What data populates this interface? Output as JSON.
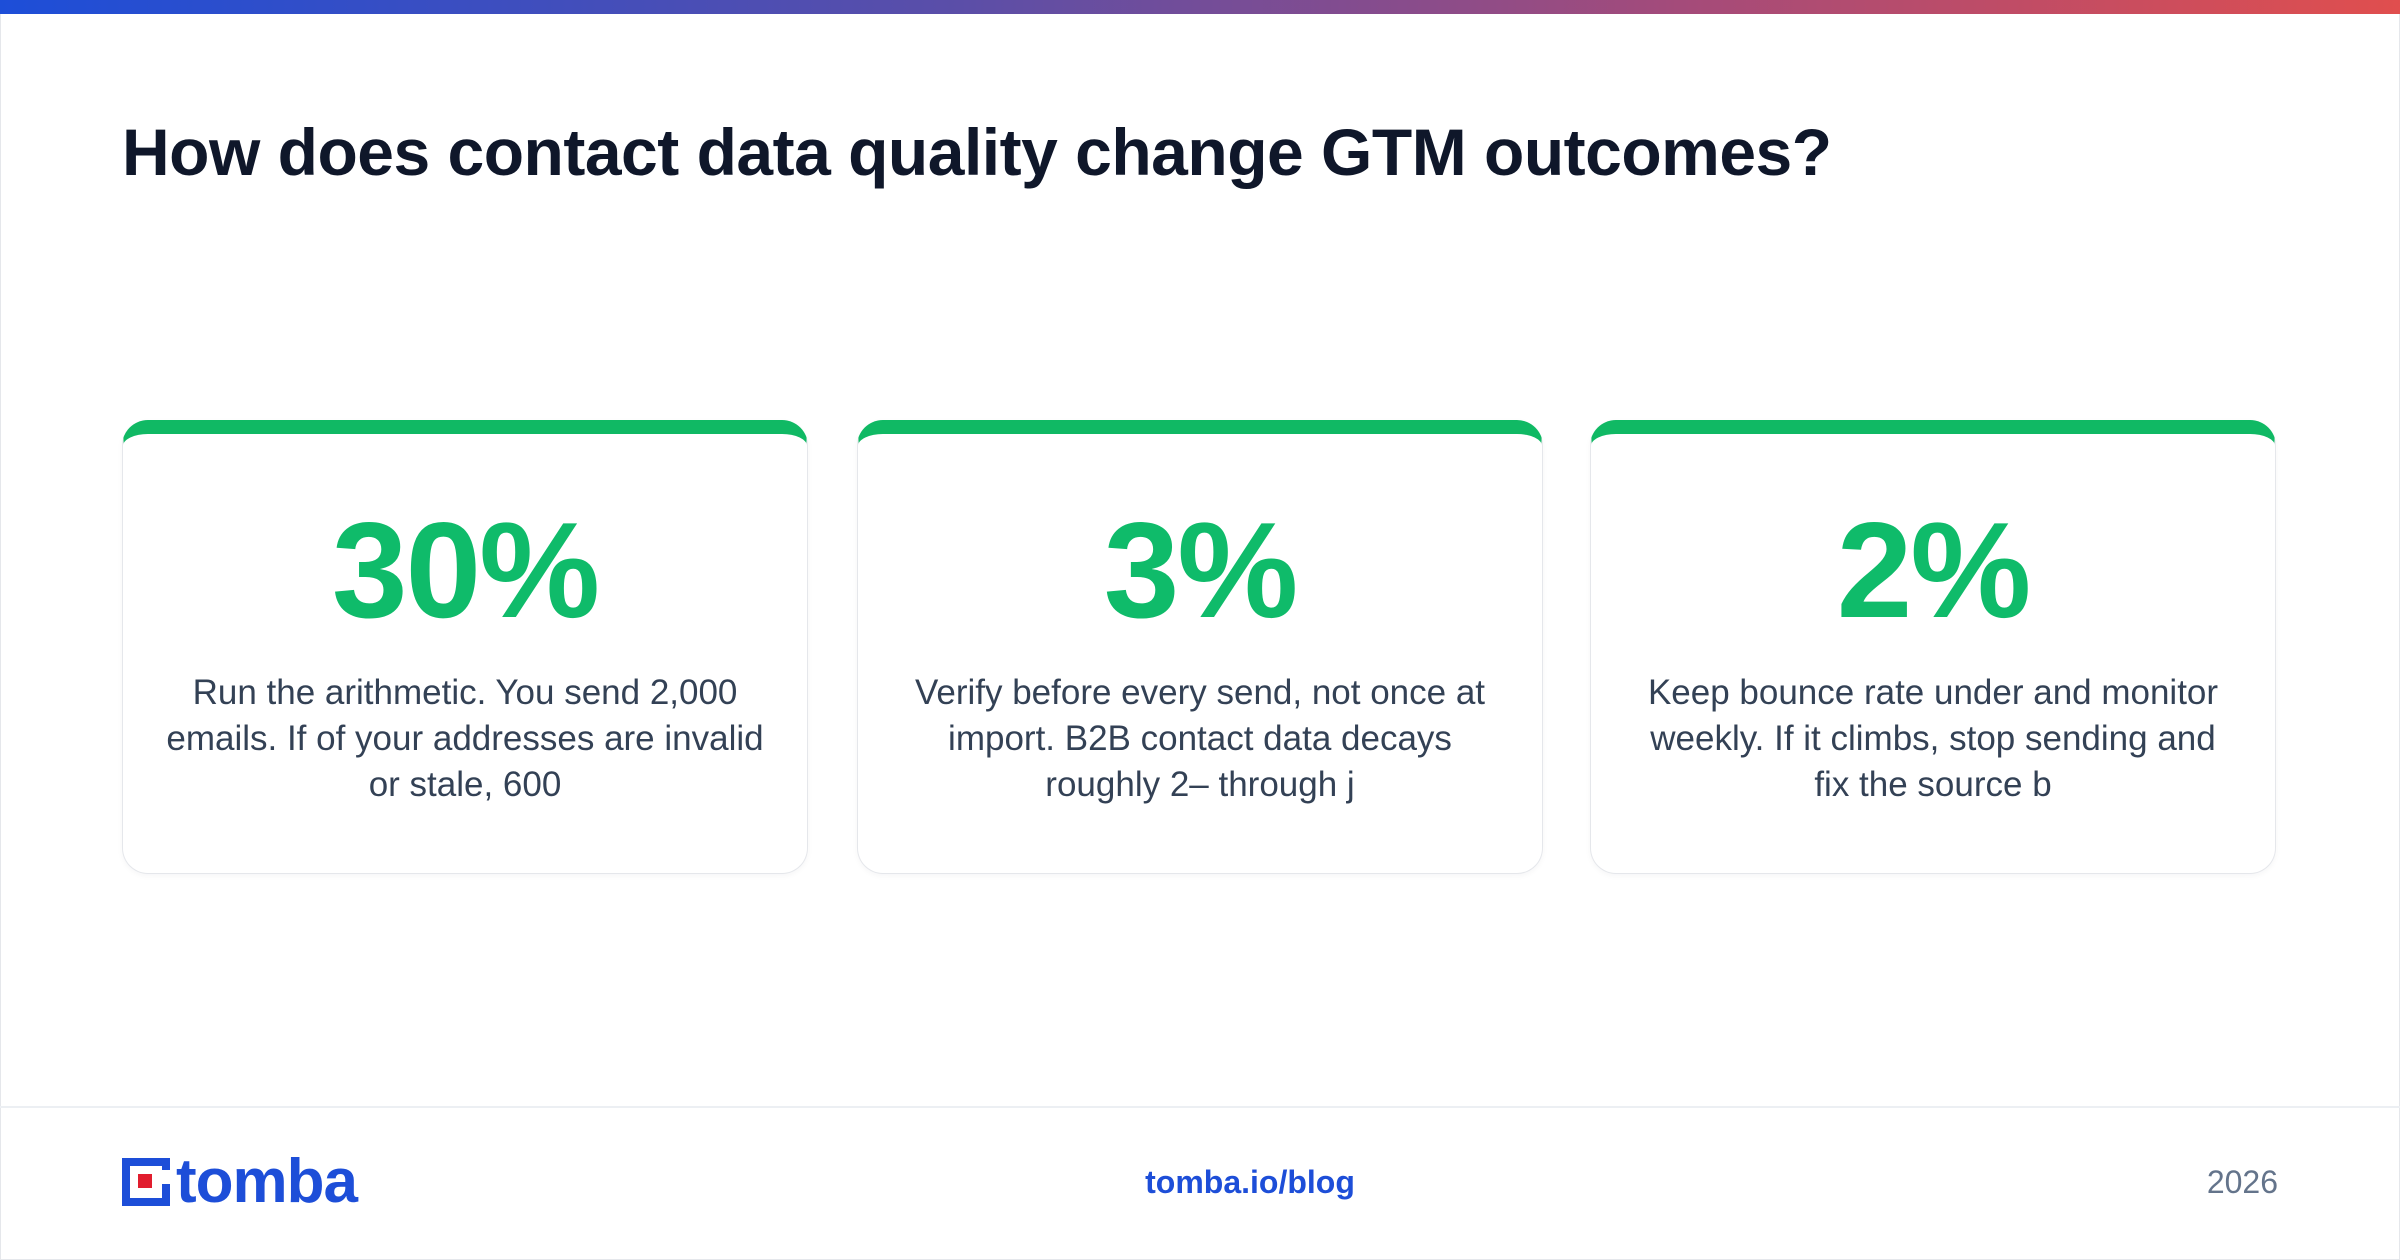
{
  "headline": "How does contact data quality change GTM outcomes?",
  "colors": {
    "accent_green": "#10b964",
    "brand_blue": "#1d4ed8",
    "brand_red": "#e11d2e",
    "heading": "#0f172a",
    "body_text": "#334155",
    "muted": "#64748b"
  },
  "cards": [
    {
      "stat": "30%",
      "text": "Run the arithmetic. You send 2,000 emails. If of your addresses are invalid or stale, 600"
    },
    {
      "stat": "3%",
      "text": "Verify before every send, not once at import. B2B contact data decays roughly 2– through j"
    },
    {
      "stat": "2%",
      "text": "Keep bounce rate under and monitor weekly. If it climbs, stop sending and fix the source b"
    }
  ],
  "footer": {
    "logo_text": "tomba",
    "logo_icon": "tomba-logo-icon",
    "link": "tomba.io/blog",
    "year": "2026"
  }
}
